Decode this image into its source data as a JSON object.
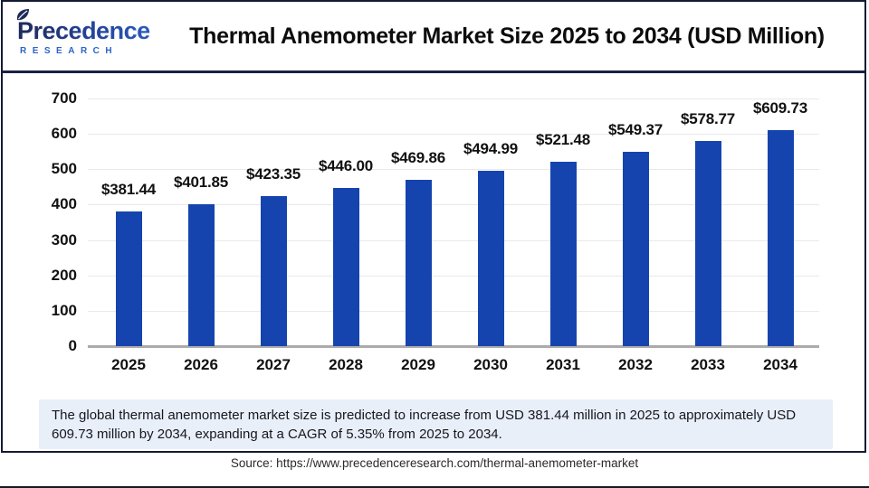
{
  "brand": {
    "name": "Precedence",
    "subtitle": "RESEARCH"
  },
  "header": {
    "title": "Thermal Anemometer Market Size 2025 to 2034 (USD Million)"
  },
  "chart_data": {
    "type": "bar",
    "title": "Thermal Anemometer Market Size 2025 to 2034 (USD Million)",
    "categories": [
      "2025",
      "2026",
      "2027",
      "2028",
      "2029",
      "2030",
      "2031",
      "2032",
      "2033",
      "2034"
    ],
    "values": [
      381.44,
      401.85,
      423.35,
      446.0,
      469.86,
      494.99,
      521.48,
      549.37,
      578.77,
      609.73
    ],
    "value_labels": [
      "$381.44",
      "$401.85",
      "$423.35",
      "$446.00",
      "$469.86",
      "$494.99",
      "$521.48",
      "$549.37",
      "$578.77",
      "$609.73"
    ],
    "unit": "USD Million",
    "xlabel": "",
    "ylabel": "",
    "ylim": [
      0,
      700
    ],
    "yticks": [
      0,
      100,
      200,
      300,
      400,
      500,
      600,
      700
    ],
    "grid": true,
    "legend": false,
    "bar_color": "#1544ae"
  },
  "note": {
    "text": "The global thermal anemometer market size is predicted to increase from USD 381.44 million in 2025 to approximately USD 609.73 million by 2034, expanding at a CAGR of 5.35% from 2025 to 2034."
  },
  "source": {
    "text": "Source: https://www.precedenceresearch.com/thermal-anemometer-market"
  },
  "colors": {
    "bar": "#1544ae",
    "frame_border": "#141a33",
    "header_divider": "#1a2142",
    "note_bg": "#e9eff8",
    "gridline": "#e9e9e9",
    "baseline": "#ababab",
    "logo_dark": "#1e2a5a",
    "logo_light": "#2e66cc",
    "logo_research_text": "#2c64c8"
  }
}
